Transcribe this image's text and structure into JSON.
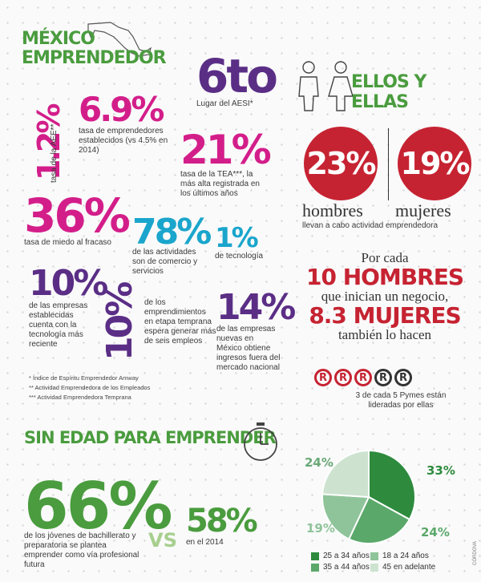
{
  "header": {
    "title_line1": "MÉXICO",
    "title_line2": "EMPRENDEDOR"
  },
  "aesi": {
    "value": "6to",
    "label": "Lugar del AESI*"
  },
  "aee": {
    "value": "1.2%",
    "label": "tasa de la AEE**"
  },
  "established": {
    "value": "6.9%",
    "label": "tasa de emprendedores establecidos (vs 4.5% en 2014)"
  },
  "tea": {
    "value": "21%",
    "label": "tasa de la TEA***, la más alta registrada en los últimos años"
  },
  "fear": {
    "value": "36%",
    "label": "tasa de miedo al fracaso"
  },
  "commerce": {
    "value": "78%",
    "label": "de las actividades son de comercio y servicios"
  },
  "tech": {
    "value": "1%",
    "label": "de tecnología"
  },
  "recent_tech": {
    "value": "10%",
    "label": "de las empresas establecidas cuenta con la tecnología más reciente"
  },
  "six_jobs": {
    "value": "10%",
    "label": "de los emprendimientos en etapa temprana espera generar más de seis empleos"
  },
  "foreign": {
    "value": "14%",
    "label": "de las empresas nuevas en México obtiene ingresos fuera del mercado nacional"
  },
  "footnotes": [
    "* Índice de Espíritu Emprendedor Amway",
    "** Actividad Emprendedora de los Empleados",
    "*** Actividad Emprendedora Temprana"
  ],
  "gender": {
    "title": "ELLOS Y ELLAS",
    "men_value": "23%",
    "women_value": "19%",
    "men_label": "hombres",
    "women_label": "mujeres",
    "caption": "llevan a cabo actividad emprendedora",
    "line1": "Por cada",
    "line2": "10 HOMBRES",
    "line3": "que inician un negocio,",
    "line4": "8.3 MUJERES",
    "line5": "también lo hacen",
    "pymes_caption": "3 de cada 5 Pymes están lideradas por ellas",
    "pymes_icon": "R",
    "pymes_led_by_women": 3,
    "pymes_total": 5,
    "colors": {
      "red": "#c62332",
      "dark": "#333333"
    }
  },
  "age": {
    "title": "SIN EDAD PARA EMPRENDER",
    "young_value": "66%",
    "young_label": "de los jóvenes de bachillerato y preparatoria se plantea emprender como vía profesional futura",
    "vs": "VS",
    "prev_value": "58%",
    "prev_label": "en el 2014",
    "clock_icon": "clock-icon"
  },
  "chart_data": {
    "type": "pie",
    "categories": [
      "25 a 34 años",
      "35 a 44 años",
      "18 a 24 años",
      "45 en adelante"
    ],
    "values": [
      33,
      24,
      19,
      24
    ],
    "labels": [
      "33%",
      "24%",
      "19%",
      "24%"
    ],
    "colors": [
      "#2e8b3e",
      "#5aa86a",
      "#8fc49a",
      "#cde3d0"
    ],
    "legend_placement": "bottom"
  },
  "credit": "CÓRDOVA"
}
